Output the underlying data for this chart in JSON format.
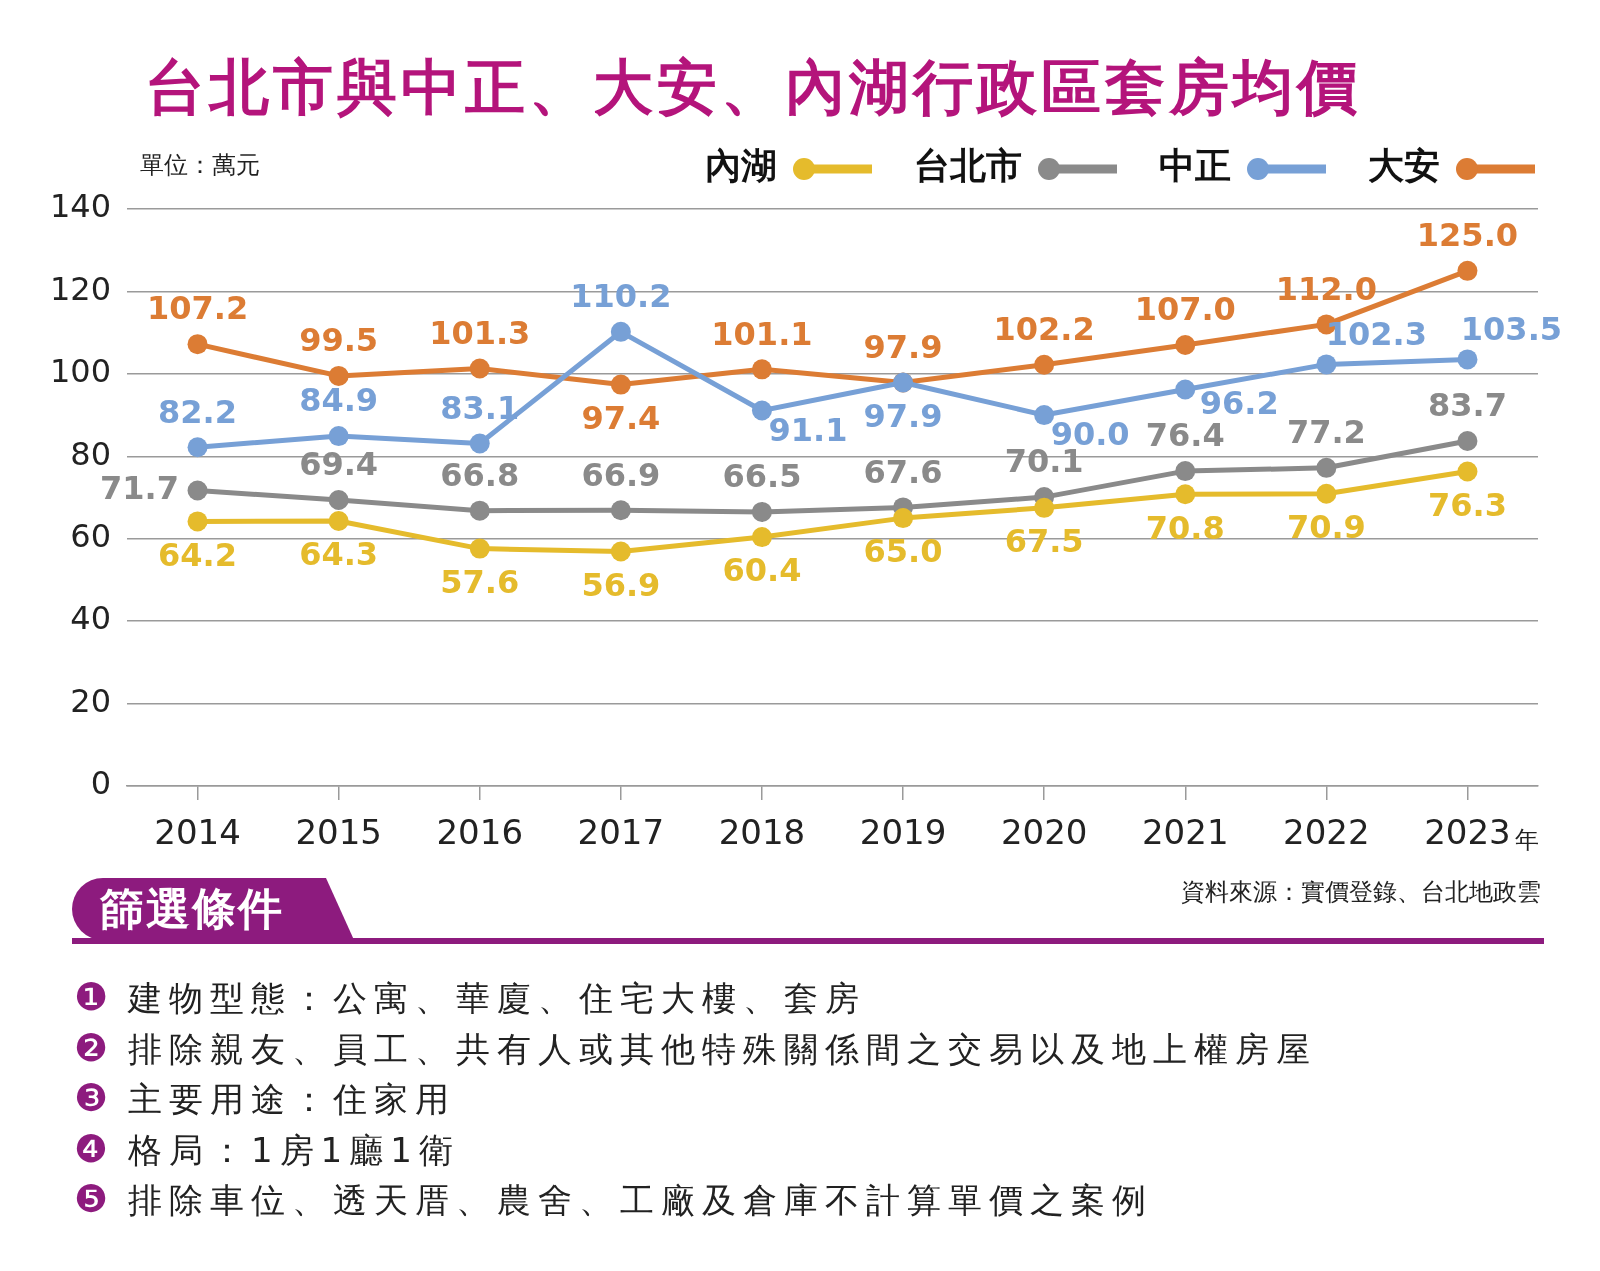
{
  "chart_data": {
    "type": "line",
    "title": "台北市與中正、大安、內湖行政區套房均價",
    "ylabel": "單位：萬元",
    "xlabel": "年",
    "categories": [
      "2014",
      "2015",
      "2016",
      "2017",
      "2018",
      "2019",
      "2020",
      "2021",
      "2022",
      "2023"
    ],
    "series": [
      {
        "name": "內湖",
        "color": "#e5bb2c",
        "values": [
          64.2,
          64.3,
          57.6,
          56.9,
          60.4,
          65.0,
          67.5,
          70.8,
          70.9,
          76.3
        ],
        "value_labels": [
          "64.2",
          "64.3",
          "57.6",
          "56.9",
          "60.4",
          "65.0",
          "67.5",
          "70.8",
          "70.9",
          "76.3"
        ]
      },
      {
        "name": "台北市",
        "color": "#8a8a8a",
        "values": [
          71.7,
          69.4,
          66.8,
          66.9,
          66.5,
          67.6,
          70.1,
          76.4,
          77.2,
          83.7
        ],
        "value_labels": [
          "71.7",
          "69.4",
          "66.8",
          "66.9",
          "66.5",
          "67.6",
          "70.1",
          "76.4",
          "77.2",
          "83.7"
        ]
      },
      {
        "name": "中正",
        "color": "#77a0d6",
        "values": [
          82.2,
          84.9,
          83.1,
          110.2,
          91.1,
          97.9,
          90.0,
          96.2,
          102.3,
          103.5
        ],
        "value_labels": [
          "82.2",
          "84.9",
          "83.1",
          "110.2",
          "91.1",
          "97.9",
          "90.0",
          "96.2",
          "102.3",
          "103.5"
        ]
      },
      {
        "name": "大安",
        "color": "#dc7c34",
        "values": [
          107.2,
          99.5,
          101.3,
          97.4,
          101.1,
          97.9,
          102.2,
          107.0,
          112.0,
          125.0
        ],
        "value_labels": [
          "107.2",
          "99.5",
          "101.3",
          "97.4",
          "101.1",
          "97.9",
          "102.2",
          "107.0",
          "112.0",
          "125.0"
        ]
      }
    ],
    "ylim": [
      0,
      140
    ],
    "yticks": [
      0,
      20,
      40,
      60,
      80,
      100,
      120,
      140
    ],
    "grid": "y",
    "legend": "top right",
    "marker": "circle",
    "line_style": "solid",
    "annotations": [
      "資料來源：實價登錄、台北地政雲",
      "篩選條件",
      "❶ 建物型態：公寓、華廈、住宅大樓、套房",
      "❷ 排除親友、員工、共有人或其他特殊關係間之交易以及地上權房屋",
      "❸ 主要用途：住家用",
      "❹ 格局：1房1廳1衛",
      "❺ 排除車位、透天厝、農舍、工廠及倉庫不計算單價之案例"
    ]
  }
}
